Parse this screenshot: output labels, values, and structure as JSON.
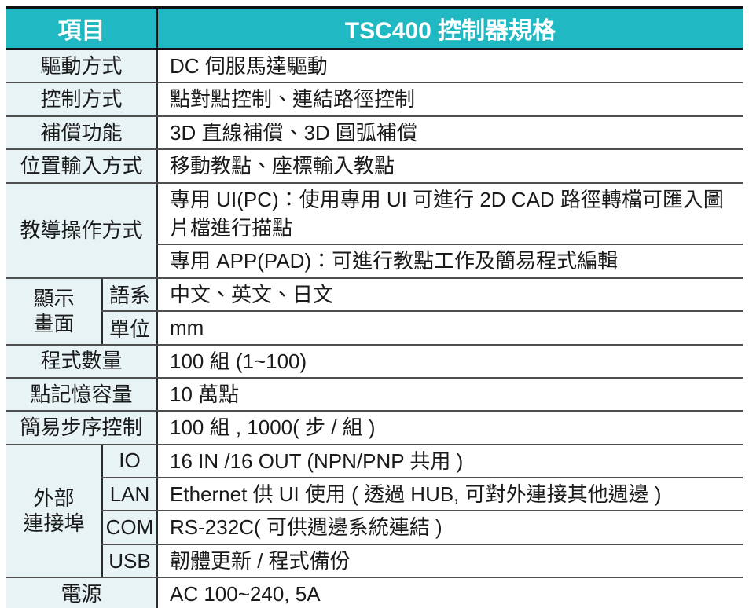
{
  "header": {
    "item": "項目",
    "spec": "TSC400 控制器規格"
  },
  "rows": {
    "drive": {
      "label": "驅動方式",
      "value": "DC 伺服馬達驅動"
    },
    "control": {
      "label": "控制方式",
      "value": "點對點控制、連結路徑控制"
    },
    "compensation": {
      "label": "補償功能",
      "value": "3D 直線補償、3D 圓弧補償"
    },
    "positionInput": {
      "label": "位置輸入方式",
      "value": "移動教點、座標輸入教點"
    },
    "teaching": {
      "label": "教導操作方式",
      "pc": "專用 UI(PC)：使用專用 UI 可進行 2D CAD 路徑轉檔可匯入圖片檔進行描點",
      "app": "專用 APP(PAD)：可進行教點工作及簡易程式編輯"
    },
    "display": {
      "labelLine1": "顯示",
      "labelLine2": "畫面",
      "language": {
        "label": "語系",
        "value": "中文、英文、日文"
      },
      "unit": {
        "label": "單位",
        "value": "mm"
      }
    },
    "programCount": {
      "label": "程式數量",
      "value": "100 組 (1~100)"
    },
    "pointMemory": {
      "label": "點記憶容量",
      "value": "10 萬點"
    },
    "stepControl": {
      "label": "簡易步序控制",
      "value": "100 組 , 1000( 步 / 組 )"
    },
    "externalPorts": {
      "labelLine1": "外部",
      "labelLine2": "連接埠",
      "io": {
        "label": "IO",
        "value": "16 IN /16 OUT (NPN/PNP 共用 )"
      },
      "lan": {
        "label": "LAN",
        "value": "Ethernet 供 UI 使用 ( 透過 HUB, 可對外連接其他週邊 )"
      },
      "com": {
        "label": "COM",
        "value": "RS-232C( 可供週邊系統連結 )"
      },
      "usb": {
        "label": "USB",
        "value": "韌體更新 / 程式備份"
      }
    },
    "power": {
      "label": "電源",
      "value": "AC 100~240, 5A"
    }
  },
  "colors": {
    "header_teal": "#20b9c3",
    "label_background": "#e8f3f5",
    "border_dark": "#111111",
    "border_gray": "#4f4f4f",
    "header_text": "#ffffff",
    "body_text": "#1a1a1a"
  }
}
